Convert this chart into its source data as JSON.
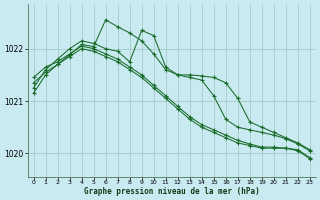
{
  "title": "Graphe pression niveau de la mer (hPa)",
  "background_color": "#c8eaf0",
  "plot_bg_color": "#c8eaf0",
  "grid_color": "#9dc8bc",
  "line_color": "#1a6b2a",
  "marker_color": "#1a6b2a",
  "xlim": [
    -0.5,
    23.5
  ],
  "ylim": [
    1019.55,
    1022.85
  ],
  "yticks": [
    1020,
    1021,
    1022
  ],
  "xticks": [
    0,
    1,
    2,
    3,
    4,
    5,
    6,
    7,
    8,
    9,
    10,
    11,
    12,
    13,
    14,
    15,
    16,
    17,
    18,
    19,
    20,
    21,
    22,
    23
  ],
  "series": [
    [
      1021.35,
      1021.55,
      1021.7,
      1021.85,
      1022.0,
      1021.95,
      1021.85,
      1021.75,
      1021.6,
      1021.45,
      1021.25,
      1021.05,
      1020.85,
      1020.65,
      1020.5,
      1020.4,
      1020.3,
      1020.2,
      1020.15,
      1020.1,
      1020.1,
      1020.1,
      1020.05,
      1019.9
    ],
    [
      1021.45,
      1021.65,
      1021.75,
      1021.9,
      1022.05,
      1022.0,
      1021.9,
      1021.8,
      1021.65,
      1021.5,
      1021.3,
      1021.1,
      1020.9,
      1020.7,
      1020.55,
      1020.45,
      1020.35,
      1020.25,
      1020.18,
      1020.12,
      1020.12,
      1020.1,
      1020.07,
      1019.92
    ],
    [
      1021.25,
      1021.6,
      1021.8,
      1022.0,
      1022.15,
      1022.1,
      1022.0,
      1021.95,
      1021.75,
      1022.35,
      1022.25,
      1021.65,
      1021.5,
      1021.45,
      1021.4,
      1021.1,
      1020.65,
      1020.5,
      1020.45,
      1020.4,
      1020.35,
      1020.28,
      1020.18,
      1020.05
    ],
    [
      1021.15,
      1021.5,
      1021.7,
      1021.88,
      1022.08,
      1022.04,
      1022.55,
      1022.42,
      1022.3,
      1022.15,
      1021.9,
      1021.6,
      1021.5,
      1021.5,
      1021.48,
      1021.45,
      1021.35,
      1021.05,
      1020.6,
      1020.5,
      1020.4,
      1020.3,
      1020.2,
      1020.07
    ]
  ]
}
